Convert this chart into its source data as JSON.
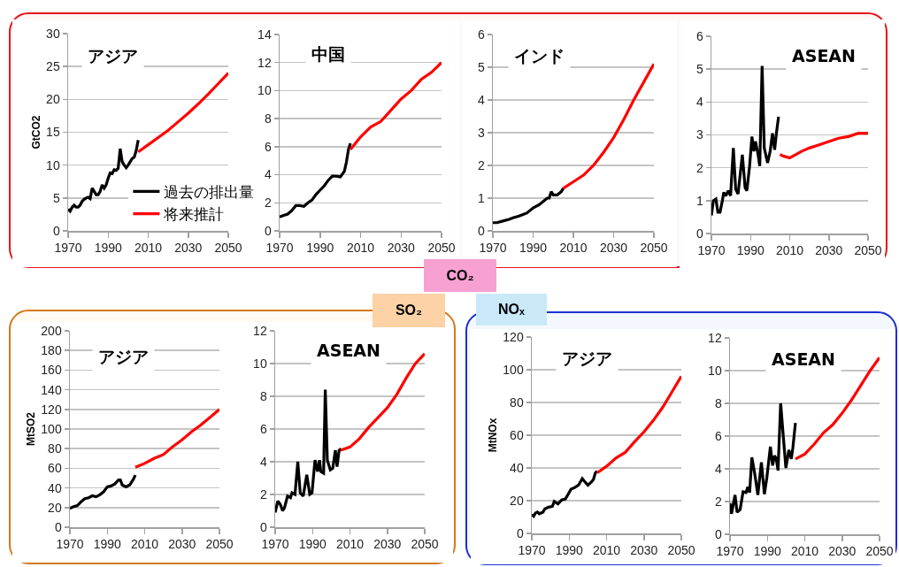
{
  "chart_data": [
    {
      "type": "line",
      "title": "アジア",
      "ylabel": "GtCO2",
      "annotations": [
        "CO₂"
      ],
      "xlim": [
        1970,
        2050
      ],
      "xticks": [
        1970,
        1990,
        2010,
        2030,
        2050
      ],
      "ylim": [
        0,
        30
      ],
      "yticks": [
        0,
        5,
        10,
        15,
        20,
        25,
        30
      ],
      "grid": "y",
      "legend": "bottom right",
      "series": [
        {
          "name": "過去の排出量",
          "color": "#000000",
          "x": [
            1970,
            1971,
            1972,
            1973,
            1974,
            1975,
            1976,
            1977,
            1978,
            1979,
            1980,
            1981,
            1982,
            1983,
            1984,
            1985,
            1986,
            1987,
            1988,
            1989,
            1990,
            1991,
            1992,
            1993,
            1994,
            1995,
            1996,
            1997,
            1998,
            1999,
            2000,
            2001,
            2002,
            2003,
            2004,
            2005
          ],
          "values": [
            3.3,
            3.0,
            3.6,
            3.9,
            3.6,
            3.6,
            3.9,
            4.5,
            4.8,
            5.0,
            5.1,
            4.9,
            6.5,
            6.0,
            5.5,
            5.5,
            6.0,
            7.0,
            6.5,
            7.0,
            8.0,
            8.8,
            8.7,
            9.3,
            9.2,
            9.5,
            12.5,
            10.5,
            10.0,
            9.6,
            10.0,
            10.5,
            11.0,
            11.2,
            12.2,
            13.8
          ]
        },
        {
          "name": "将来推計",
          "color": "#ff0000",
          "x": [
            2005,
            2010,
            2015,
            2020,
            2025,
            2030,
            2035,
            2040,
            2045,
            2050
          ],
          "values": [
            12.0,
            13.1,
            14.2,
            15.3,
            16.6,
            17.9,
            19.3,
            20.8,
            22.4,
            24.0
          ]
        }
      ]
    },
    {
      "type": "line",
      "title": "中国",
      "xlim": [
        1970,
        2050
      ],
      "xticks": [
        1970,
        1990,
        2010,
        2030,
        2050
      ],
      "ylim": [
        0,
        14
      ],
      "yticks": [
        0,
        2,
        4,
        6,
        8,
        10,
        12,
        14
      ],
      "grid": "y",
      "series": [
        {
          "color": "#000000",
          "x": [
            1970,
            1972,
            1974,
            1976,
            1978,
            1980,
            1982,
            1984,
            1986,
            1988,
            1990,
            1992,
            1994,
            1996,
            1998,
            2000,
            2002,
            2003,
            2004,
            2005
          ],
          "values": [
            1.0,
            1.1,
            1.2,
            1.45,
            1.8,
            1.8,
            1.75,
            2.0,
            2.2,
            2.6,
            2.9,
            3.2,
            3.6,
            3.9,
            3.9,
            3.85,
            4.25,
            4.9,
            5.8,
            6.25
          ]
        },
        {
          "color": "#ff0000",
          "x": [
            2005,
            2010,
            2015,
            2020,
            2025,
            2030,
            2035,
            2040,
            2045,
            2050
          ],
          "values": [
            5.8,
            6.7,
            7.4,
            7.8,
            8.6,
            9.4,
            10.0,
            10.8,
            11.3,
            12.0
          ]
        }
      ]
    },
    {
      "type": "line",
      "title": "インド",
      "xlim": [
        1970,
        2050
      ],
      "xticks": [
        1970,
        1990,
        2010,
        2030,
        2050
      ],
      "ylim": [
        0,
        6
      ],
      "yticks": [
        0,
        1,
        2,
        3,
        4,
        5,
        6
      ],
      "grid": "y",
      "series": [
        {
          "color": "#000000",
          "x": [
            1970,
            1972,
            1975,
            1978,
            1980,
            1983,
            1985,
            1987,
            1990,
            1993,
            1995,
            1997,
            1998,
            1999,
            2000,
            2002,
            2003,
            2004,
            2005
          ],
          "values": [
            0.25,
            0.25,
            0.3,
            0.35,
            0.4,
            0.45,
            0.5,
            0.55,
            0.7,
            0.8,
            0.9,
            1.0,
            1.0,
            1.2,
            1.1,
            1.1,
            1.15,
            1.2,
            1.3
          ]
        },
        {
          "color": "#ff0000",
          "x": [
            2005,
            2010,
            2015,
            2020,
            2025,
            2030,
            2035,
            2040,
            2045,
            2050
          ],
          "values": [
            1.3,
            1.5,
            1.7,
            2.0,
            2.4,
            2.85,
            3.4,
            4.0,
            4.55,
            5.1
          ]
        }
      ]
    },
    {
      "type": "line",
      "title": "ASEAN",
      "xlim": [
        1970,
        2050
      ],
      "xticks": [
        1970,
        1990,
        2010,
        2030,
        2050
      ],
      "ylim": [
        0,
        6
      ],
      "yticks": [
        0,
        1,
        2,
        3,
        4,
        5,
        6
      ],
      "grid": "y",
      "series": [
        {
          "color": "#000000",
          "x": [
            1970,
            1971,
            1972.3,
            1973.3,
            1974.4,
            1975.6,
            1976.3,
            1977.4,
            1978.6,
            1979.8,
            1981.2,
            1982.4,
            1983.6,
            1985.8,
            1987.2,
            1988.1,
            1989.5,
            1990.7,
            1991.7,
            1992.5,
            1993.7,
            1994.7,
            1995.9,
            1997,
            1998.7,
            2000,
            2001.2,
            2002.3,
            2003.2,
            2004.3
          ],
          "values": [
            0.55,
            1.0,
            1.05,
            0.65,
            0.65,
            1.0,
            1.25,
            1.15,
            1.3,
            1.15,
            2.6,
            1.35,
            1.2,
            2.4,
            1.4,
            1.3,
            2.05,
            2.95,
            2.5,
            2.8,
            2.45,
            2.05,
            5.1,
            2.6,
            2.15,
            2.5,
            3.05,
            2.55,
            3.05,
            3.55
          ]
        },
        {
          "color": "#ff0000",
          "x": [
            2005,
            2007,
            2010,
            2013,
            2016,
            2020,
            2025,
            2030,
            2035,
            2040,
            2045,
            2050
          ],
          "values": [
            2.4,
            2.35,
            2.3,
            2.4,
            2.5,
            2.6,
            2.7,
            2.8,
            2.9,
            2.95,
            3.05,
            3.05
          ]
        }
      ]
    },
    {
      "type": "line",
      "title": "アジア",
      "ylabel": "MtSO2",
      "annotations": [
        "SO₂"
      ],
      "xlim": [
        1970,
        2050
      ],
      "xticks": [
        1970,
        1990,
        2010,
        2030,
        2050
      ],
      "ylim": [
        0,
        200
      ],
      "yticks": [
        0,
        20,
        40,
        60,
        80,
        100,
        120,
        140,
        160,
        180,
        200
      ],
      "grid": "y",
      "series": [
        {
          "color": "#000000",
          "x": [
            1970,
            1972,
            1974,
            1976,
            1978,
            1980,
            1982,
            1984,
            1986,
            1988,
            1990,
            1992,
            1994,
            1996,
            1997,
            1998,
            2000,
            2002,
            2004,
            2005
          ],
          "values": [
            19,
            21,
            22,
            26,
            29,
            30,
            32,
            31,
            33,
            36,
            41,
            42,
            44,
            48,
            48,
            43,
            41,
            43,
            49,
            53
          ]
        },
        {
          "color": "#ff0000",
          "x": [
            2005,
            2010,
            2015,
            2020,
            2025,
            2030,
            2035,
            2040,
            2045,
            2050
          ],
          "values": [
            61,
            65,
            70,
            74,
            82,
            89,
            97,
            104,
            112,
            120
          ]
        }
      ]
    },
    {
      "type": "line",
      "title": "ASEAN",
      "xlim": [
        1970,
        2050
      ],
      "xticks": [
        1970,
        1990,
        2010,
        2030,
        2050
      ],
      "ylim": [
        0,
        12
      ],
      "yticks": [
        0,
        2,
        4,
        6,
        8,
        10,
        12
      ],
      "grid": "y",
      "series": [
        {
          "color": "#000000",
          "x": [
            1970,
            1971.4,
            1972.7,
            1974,
            1975,
            1976.6,
            1978.2,
            1979,
            1980.6,
            1982.1,
            1983.4,
            1985,
            1986.9,
            1988.5,
            1989.7,
            1991.3,
            1992.7,
            1993.7,
            1994.4,
            1995.9,
            1996.8,
            1997.9,
            1999.5,
            2000.8,
            2002.2,
            2003.1,
            2004.2,
            2005.3
          ],
          "values": [
            0.9,
            1.6,
            1.4,
            1.0,
            1.2,
            1.9,
            1.8,
            2.1,
            2.0,
            4.0,
            2.1,
            1.9,
            3.2,
            2.0,
            2.1,
            4.1,
            3.4,
            4.1,
            3.4,
            3.3,
            8.4,
            4.1,
            3.5,
            3.6,
            4.7,
            3.7,
            4.7,
            4.8
          ]
        },
        {
          "color": "#ff0000",
          "x": [
            2005,
            2010,
            2015,
            2020,
            2025,
            2030,
            2035,
            2040,
            2045,
            2050
          ],
          "values": [
            4.7,
            4.9,
            5.4,
            6.1,
            6.7,
            7.3,
            8.1,
            9.1,
            10.0,
            10.6
          ]
        }
      ]
    },
    {
      "type": "line",
      "title": "アジア",
      "ylabel": "MtNOx",
      "annotations": [
        "NOₓ"
      ],
      "xlim": [
        1970,
        2050
      ],
      "xticks": [
        1970,
        1990,
        2010,
        2030,
        2050
      ],
      "ylim": [
        0,
        120
      ],
      "yticks": [
        0,
        20,
        40,
        60,
        80,
        100,
        120
      ],
      "grid": "y",
      "series": [
        {
          "color": "#000000",
          "x": [
            1970,
            1971,
            1972,
            1973,
            1974,
            1976,
            1977,
            1979,
            1981,
            1982,
            1984,
            1986,
            1988,
            1990,
            1991,
            1993,
            1995,
            1997,
            1998,
            2000,
            2002,
            2003,
            2004,
            2005
          ],
          "values": [
            11.5,
            10.5,
            12.5,
            13,
            12,
            13,
            15,
            16,
            16.5,
            19.5,
            18,
            20.5,
            21,
            25,
            27,
            28,
            29.5,
            33.5,
            32,
            29.5,
            31.5,
            33,
            37,
            38
          ]
        },
        {
          "color": "#ff0000",
          "x": [
            2005,
            2010,
            2015,
            2020,
            2025,
            2030,
            2035,
            2040,
            2045,
            2050
          ],
          "values": [
            37,
            41,
            46,
            49.5,
            56,
            62,
            69,
            77,
            86.5,
            96
          ]
        }
      ]
    },
    {
      "type": "line",
      "title": "ASEAN",
      "xlim": [
        1970,
        2050
      ],
      "xticks": [
        1970,
        1990,
        2010,
        2030,
        2050
      ],
      "ylim": [
        0,
        12
      ],
      "yticks": [
        0,
        2,
        4,
        6,
        8,
        10,
        12
      ],
      "grid": "y",
      "series": [
        {
          "color": "#000000",
          "x": [
            1970,
            1970.8,
            1972.7,
            1973.8,
            1975.4,
            1977,
            1978.6,
            1979.5,
            1980.5,
            1981.7,
            1983.3,
            1984.9,
            1986.8,
            1988.4,
            1989.7,
            1991.6,
            1992.8,
            1993.8,
            1994.7,
            1995.7,
            1997.1,
            1998.5,
            1999.9,
            2001.5,
            2002.8,
            2003.6,
            2005
          ],
          "values": [
            1.9,
            1.25,
            2.4,
            1.35,
            1.5,
            2.6,
            2.55,
            2.9,
            2.55,
            4.7,
            3.65,
            2.4,
            4.4,
            2.45,
            3.45,
            5.35,
            4.2,
            4.8,
            4.65,
            3.9,
            8.0,
            6.0,
            4.05,
            5.15,
            4.6,
            5.25,
            6.8
          ]
        },
        {
          "color": "#ff0000",
          "x": [
            2005,
            2010,
            2015,
            2020,
            2025,
            2030,
            2035,
            2040,
            2045,
            2050
          ],
          "values": [
            4.6,
            4.9,
            5.5,
            6.2,
            6.7,
            7.4,
            8.2,
            9.1,
            10.0,
            10.8
          ]
        }
      ]
    }
  ]
}
